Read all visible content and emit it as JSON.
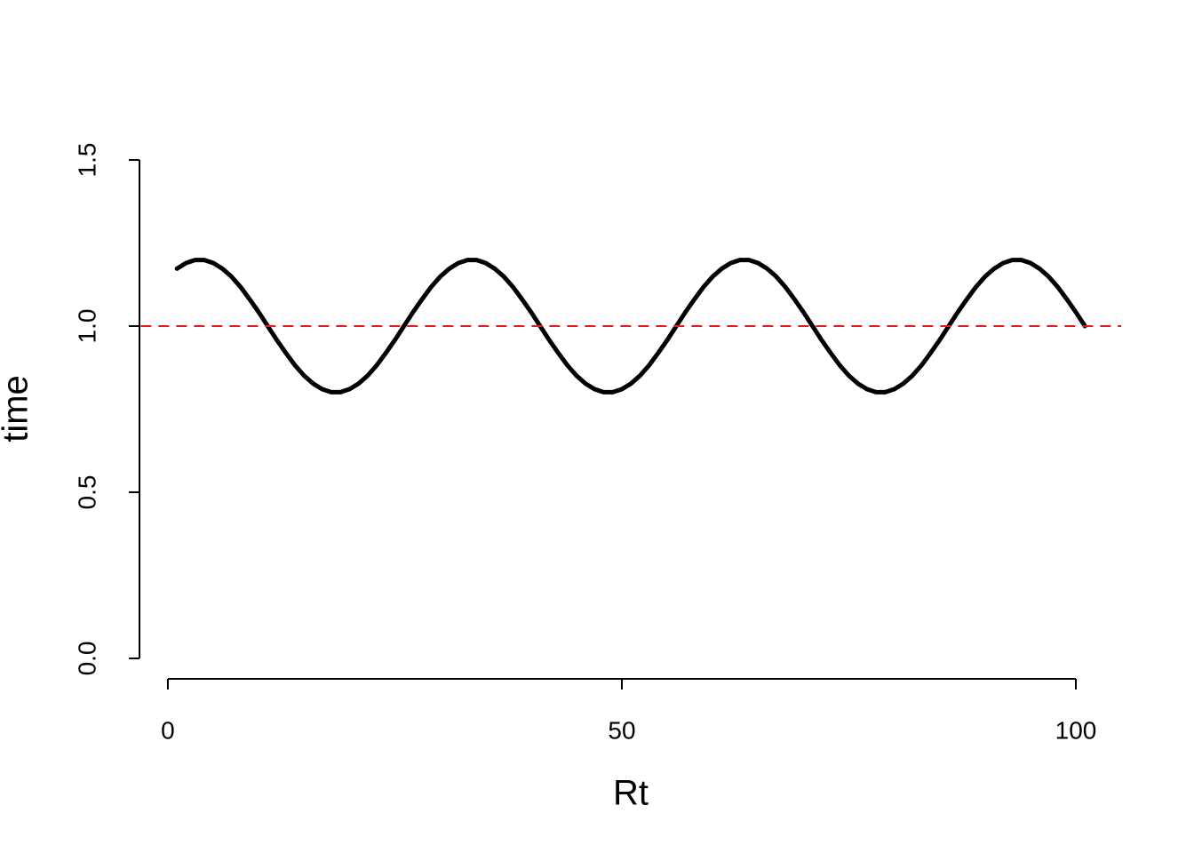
{
  "chart_data": {
    "type": "line",
    "x_label": "Rt",
    "y_label": "time",
    "x": [
      1,
      2,
      3,
      4,
      5,
      6,
      7,
      8,
      9,
      10,
      11,
      12,
      13,
      14,
      15,
      16,
      17,
      18,
      19,
      20,
      21,
      22,
      23,
      24,
      25,
      26,
      27,
      28,
      29,
      30,
      31,
      32,
      33,
      34,
      35,
      36,
      37,
      38,
      39,
      40,
      41,
      42,
      43,
      44,
      45,
      46,
      47,
      48,
      49,
      50,
      51,
      52,
      53,
      54,
      55,
      56,
      57,
      58,
      59,
      60,
      61,
      62,
      63,
      64,
      65,
      66,
      67,
      68,
      69,
      70,
      71,
      72,
      73,
      74,
      75,
      76,
      77,
      78,
      79,
      80,
      81,
      82,
      83,
      84,
      85,
      86,
      87,
      88,
      89,
      90,
      91,
      92,
      93,
      94,
      95,
      96,
      97,
      98,
      99,
      100,
      101
    ],
    "series": [
      {
        "color": "#000000",
        "values": [
          1.173,
          1.19,
          1.199,
          1.199,
          1.19,
          1.173,
          1.149,
          1.118,
          1.081,
          1.042,
          1.0,
          0.958,
          0.919,
          0.882,
          0.851,
          0.827,
          0.81,
          0.801,
          0.801,
          0.81,
          0.827,
          0.851,
          0.882,
          0.919,
          0.958,
          1.0,
          1.042,
          1.081,
          1.118,
          1.149,
          1.173,
          1.19,
          1.199,
          1.199,
          1.19,
          1.173,
          1.149,
          1.118,
          1.081,
          1.042,
          1.0,
          0.958,
          0.919,
          0.882,
          0.851,
          0.827,
          0.81,
          0.801,
          0.801,
          0.81,
          0.827,
          0.851,
          0.882,
          0.919,
          0.958,
          1.0,
          1.042,
          1.081,
          1.118,
          1.149,
          1.173,
          1.19,
          1.199,
          1.199,
          1.19,
          1.173,
          1.149,
          1.118,
          1.081,
          1.042,
          1.0,
          0.958,
          0.919,
          0.882,
          0.851,
          0.827,
          0.81,
          0.801,
          0.801,
          0.81,
          0.827,
          0.851,
          0.882,
          0.919,
          0.958,
          1.0,
          1.042,
          1.081,
          1.118,
          1.149,
          1.173,
          1.19,
          1.199,
          1.199,
          1.19,
          1.173,
          1.149,
          1.118,
          1.081,
          1.042,
          1.0
        ]
      }
    ],
    "hline": {
      "value": 1,
      "color": "#e31a1c",
      "dashed": true
    },
    "xlim": [
      -3,
      105
    ],
    "ylim": [
      -0.06,
      1.56
    ],
    "xticks": [
      0,
      50,
      100
    ],
    "yticks": [
      {
        "value": 0,
        "label": "0.0"
      },
      0.5,
      {
        "value": 1,
        "label": "1.0"
      },
      1.5
    ]
  }
}
